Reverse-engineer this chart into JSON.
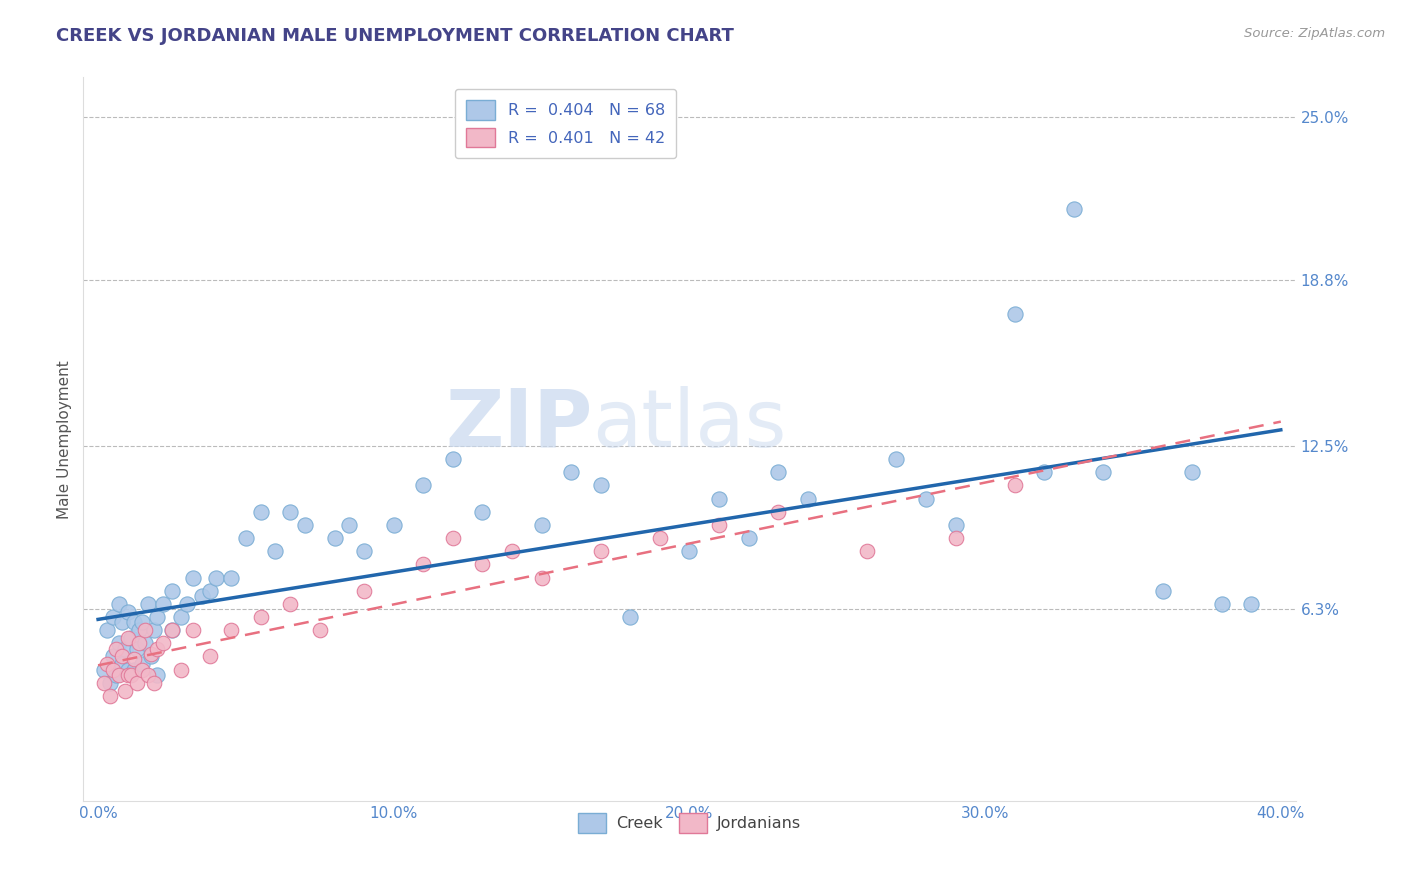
{
  "title": "CREEK VS JORDANIAN MALE UNEMPLOYMENT CORRELATION CHART",
  "source_text": "Source: ZipAtlas.com",
  "ylabel": "Male Unemployment",
  "xlim": [
    -0.005,
    0.405
  ],
  "ylim": [
    -0.01,
    0.265
  ],
  "yticks": [
    0.063,
    0.125,
    0.188,
    0.25
  ],
  "ytick_labels": [
    "6.3%",
    "12.5%",
    "18.8%",
    "25.0%"
  ],
  "xticks": [
    0.0,
    0.1,
    0.2,
    0.3,
    0.4
  ],
  "xtick_labels": [
    "0.0%",
    "10.0%",
    "20.0%",
    "30.0%",
    "40.0%"
  ],
  "creek_color": "#aec8e8",
  "creek_edge_color": "#7aadd4",
  "jordanian_color": "#f2b8c8",
  "jordanian_edge_color": "#e07898",
  "creek_line_color": "#2166ac",
  "jordanian_line_color": "#e87080",
  "creek_R": 0.404,
  "creek_N": 68,
  "jordanian_R": 0.401,
  "jordanian_N": 42,
  "background_color": "#ffffff",
  "grid_color": "#bbbbbb",
  "title_color": "#444488",
  "axis_label_color": "#555555",
  "tick_label_color": "#5588cc",
  "watermark_zip": "ZIP",
  "watermark_atlas": "atlas",
  "legend_series": [
    "Creek",
    "Jordanians"
  ],
  "creek_scatter_x": [
    0.002,
    0.003,
    0.004,
    0.005,
    0.005,
    0.006,
    0.007,
    0.007,
    0.008,
    0.008,
    0.009,
    0.01,
    0.01,
    0.011,
    0.012,
    0.012,
    0.013,
    0.014,
    0.015,
    0.015,
    0.016,
    0.017,
    0.018,
    0.019,
    0.02,
    0.02,
    0.022,
    0.025,
    0.025,
    0.028,
    0.03,
    0.032,
    0.035,
    0.038,
    0.04,
    0.045,
    0.05,
    0.055,
    0.06,
    0.065,
    0.07,
    0.08,
    0.085,
    0.09,
    0.1,
    0.11,
    0.12,
    0.13,
    0.15,
    0.16,
    0.17,
    0.18,
    0.2,
    0.21,
    0.22,
    0.23,
    0.24,
    0.27,
    0.28,
    0.29,
    0.31,
    0.32,
    0.33,
    0.34,
    0.36,
    0.37,
    0.38,
    0.39
  ],
  "creek_scatter_y": [
    0.04,
    0.055,
    0.035,
    0.045,
    0.06,
    0.038,
    0.05,
    0.065,
    0.042,
    0.058,
    0.048,
    0.04,
    0.062,
    0.052,
    0.04,
    0.058,
    0.048,
    0.055,
    0.042,
    0.058,
    0.05,
    0.065,
    0.045,
    0.055,
    0.038,
    0.06,
    0.065,
    0.055,
    0.07,
    0.06,
    0.065,
    0.075,
    0.068,
    0.07,
    0.075,
    0.075,
    0.09,
    0.1,
    0.085,
    0.1,
    0.095,
    0.09,
    0.095,
    0.085,
    0.095,
    0.11,
    0.12,
    0.1,
    0.095,
    0.115,
    0.11,
    0.06,
    0.085,
    0.105,
    0.09,
    0.115,
    0.105,
    0.12,
    0.105,
    0.095,
    0.175,
    0.115,
    0.215,
    0.115,
    0.07,
    0.115,
    0.065,
    0.065
  ],
  "jordanian_scatter_x": [
    0.002,
    0.003,
    0.004,
    0.005,
    0.006,
    0.007,
    0.008,
    0.009,
    0.01,
    0.01,
    0.011,
    0.012,
    0.013,
    0.014,
    0.015,
    0.016,
    0.017,
    0.018,
    0.019,
    0.02,
    0.022,
    0.025,
    0.028,
    0.032,
    0.038,
    0.045,
    0.055,
    0.065,
    0.075,
    0.09,
    0.11,
    0.12,
    0.13,
    0.14,
    0.15,
    0.17,
    0.19,
    0.21,
    0.23,
    0.26,
    0.29,
    0.31
  ],
  "jordanian_scatter_y": [
    0.035,
    0.042,
    0.03,
    0.04,
    0.048,
    0.038,
    0.045,
    0.032,
    0.038,
    0.052,
    0.038,
    0.044,
    0.035,
    0.05,
    0.04,
    0.055,
    0.038,
    0.046,
    0.035,
    0.048,
    0.05,
    0.055,
    0.04,
    0.055,
    0.045,
    0.055,
    0.06,
    0.065,
    0.055,
    0.07,
    0.08,
    0.09,
    0.08,
    0.085,
    0.075,
    0.085,
    0.09,
    0.095,
    0.1,
    0.085,
    0.09,
    0.11
  ]
}
